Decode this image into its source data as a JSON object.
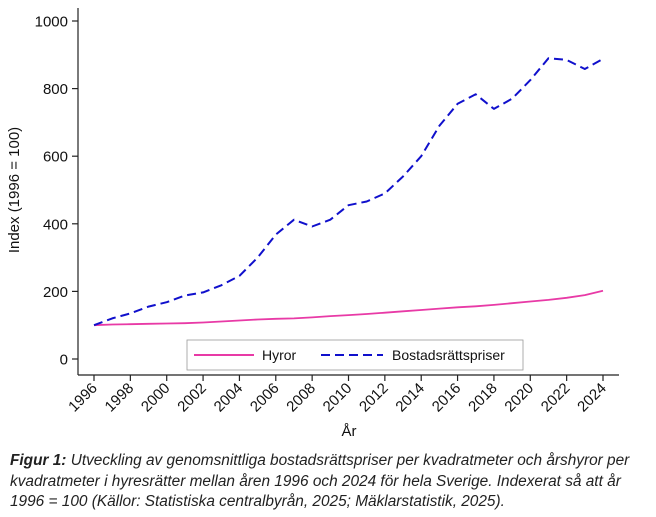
{
  "chart_data": {
    "type": "line",
    "xlabel": "År",
    "ylabel": "Index (1996 = 100)",
    "xlim": [
      1996,
      2024
    ],
    "ylim": [
      0,
      1000
    ],
    "x_ticks": [
      "1996",
      "1998",
      "2000",
      "2002",
      "2004",
      "2006",
      "2008",
      "2010",
      "2012",
      "2014",
      "2016",
      "2018",
      "2020",
      "2022",
      "2024"
    ],
    "y_ticks": [
      "0",
      "200",
      "400",
      "600",
      "800",
      "1000"
    ],
    "x": [
      1996,
      1997,
      1998,
      1999,
      2000,
      2001,
      2002,
      2003,
      2004,
      2005,
      2006,
      2007,
      2008,
      2009,
      2010,
      2011,
      2012,
      2013,
      2014,
      2015,
      2016,
      2017,
      2018,
      2019,
      2020,
      2021,
      2022,
      2023,
      2024
    ],
    "series": [
      {
        "name": "Hyror",
        "color": "#e83aa6",
        "dash": "solid",
        "values": [
          100,
          102,
          103,
          104,
          105,
          106,
          108,
          111,
          114,
          117,
          119,
          120,
          123,
          127,
          130,
          133,
          137,
          141,
          145,
          149,
          153,
          156,
          160,
          165,
          170,
          175,
          181,
          189,
          202
        ]
      },
      {
        "name": "Bostadsrättspriser",
        "color": "#1010cc",
        "dash": "dashed",
        "values": [
          100,
          120,
          135,
          155,
          168,
          188,
          197,
          218,
          246,
          300,
          368,
          412,
          392,
          412,
          455,
          466,
          490,
          540,
          600,
          690,
          755,
          783,
          740,
          770,
          825,
          890,
          885,
          858,
          888
        ]
      }
    ],
    "legend": "bottom-center",
    "grid": false
  },
  "caption": {
    "label": "Figur 1:",
    "text": " Utveckling av genomsnittliga bostadsrättspriser per kvadratmeter och årshyror per kvadratmeter i hyresrätter mellan åren 1996 och 2024 för hela Sverige. Indexerat så att år 1996 = 100 (Källor: Statistiska centralbyrån, 2025; Mäklarstatistik, 2025)."
  }
}
